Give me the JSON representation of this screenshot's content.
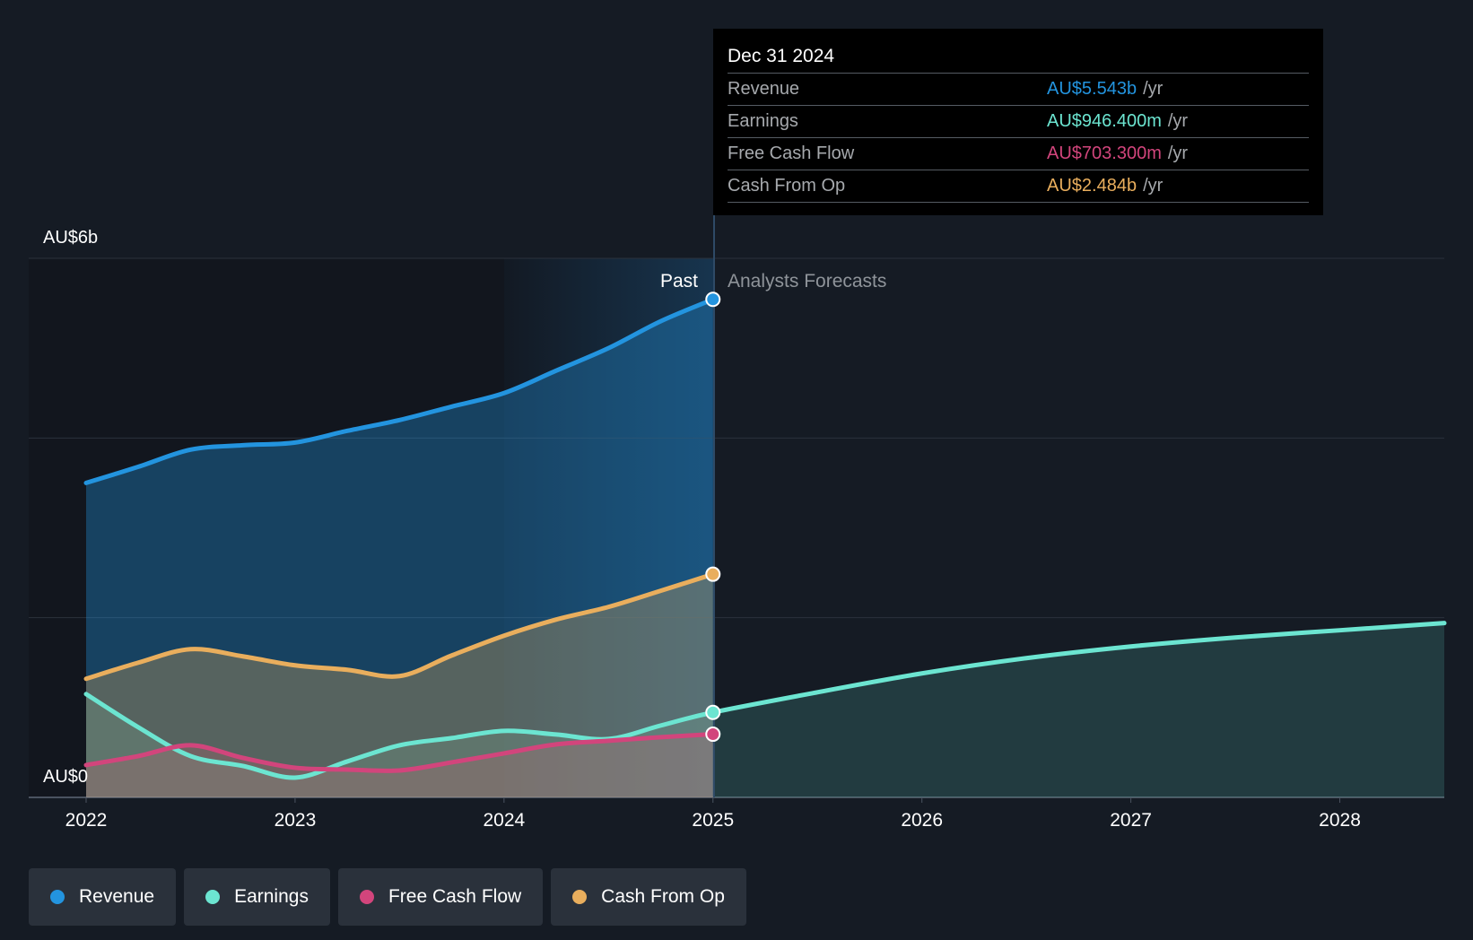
{
  "tooltip": {
    "date": "Dec 31 2024",
    "rows": [
      {
        "label": "Revenue",
        "value": "AU$5.543b",
        "unit": "/yr",
        "color": "#2394df"
      },
      {
        "label": "Earnings",
        "value": "AU$946.400m",
        "unit": "/yr",
        "color": "#6ce5d1"
      },
      {
        "label": "Free Cash Flow",
        "value": "AU$703.300m",
        "unit": "/yr",
        "color": "#d2457c"
      },
      {
        "label": "Cash From Op",
        "value": "AU$2.484b",
        "unit": "/yr",
        "color": "#e9ae5d"
      }
    ]
  },
  "legend": [
    {
      "label": "Revenue",
      "color": "#2394df"
    },
    {
      "label": "Earnings",
      "color": "#6ce5d1"
    },
    {
      "label": "Free Cash Flow",
      "color": "#d2457c"
    },
    {
      "label": "Cash From Op",
      "color": "#e9ae5d"
    }
  ],
  "chart_data": {
    "type": "area",
    "y_axis_labels": [
      "AU$6b",
      "AU$0"
    ],
    "ylim": [
      0,
      6
    ],
    "y_unit": "AU$ billions",
    "xlim": [
      2022,
      2028.5
    ],
    "x_ticks": [
      "2022",
      "2023",
      "2024",
      "2025",
      "2026",
      "2027",
      "2028"
    ],
    "grid": true,
    "past_label": "Past",
    "forecast_label": "Analysts Forecasts",
    "split_x": 2025,
    "series": [
      {
        "name": "Revenue",
        "color": "#2394df",
        "fill": true,
        "x": [
          2022,
          2022.25,
          2022.5,
          2022.75,
          2023,
          2023.25,
          2023.5,
          2023.75,
          2024,
          2024.25,
          2024.5,
          2024.75,
          2025
        ],
        "y": [
          3.5,
          3.68,
          3.87,
          3.92,
          3.95,
          4.08,
          4.2,
          4.35,
          4.5,
          4.75,
          5.0,
          5.3,
          5.543
        ]
      },
      {
        "name": "Earnings",
        "color": "#6ce5d1",
        "fill": true,
        "x": [
          2022,
          2022.25,
          2022.5,
          2022.75,
          2023,
          2023.25,
          2023.5,
          2023.75,
          2024,
          2024.25,
          2024.5,
          2024.75,
          2025,
          2025.5,
          2026,
          2026.5,
          2027,
          2027.5,
          2028,
          2028.5
        ],
        "y": [
          1.15,
          0.78,
          0.46,
          0.35,
          0.22,
          0.4,
          0.58,
          0.66,
          0.74,
          0.7,
          0.65,
          0.8,
          0.946,
          1.17,
          1.38,
          1.55,
          1.68,
          1.78,
          1.86,
          1.94
        ]
      },
      {
        "name": "Free Cash Flow",
        "color": "#d2457c",
        "fill": true,
        "x": [
          2022,
          2022.25,
          2022.5,
          2022.75,
          2023,
          2023.25,
          2023.5,
          2023.75,
          2024,
          2024.25,
          2024.5,
          2024.75,
          2025
        ],
        "y": [
          0.36,
          0.46,
          0.58,
          0.44,
          0.33,
          0.31,
          0.3,
          0.39,
          0.49,
          0.59,
          0.63,
          0.67,
          0.7033
        ]
      },
      {
        "name": "Cash From Op",
        "color": "#e9ae5d",
        "fill": true,
        "x": [
          2022,
          2022.25,
          2022.5,
          2022.75,
          2023,
          2023.25,
          2023.5,
          2023.75,
          2024,
          2024.25,
          2024.5,
          2024.75,
          2025
        ],
        "y": [
          1.32,
          1.5,
          1.65,
          1.57,
          1.47,
          1.42,
          1.35,
          1.58,
          1.8,
          1.98,
          2.12,
          2.3,
          2.484
        ]
      }
    ]
  }
}
